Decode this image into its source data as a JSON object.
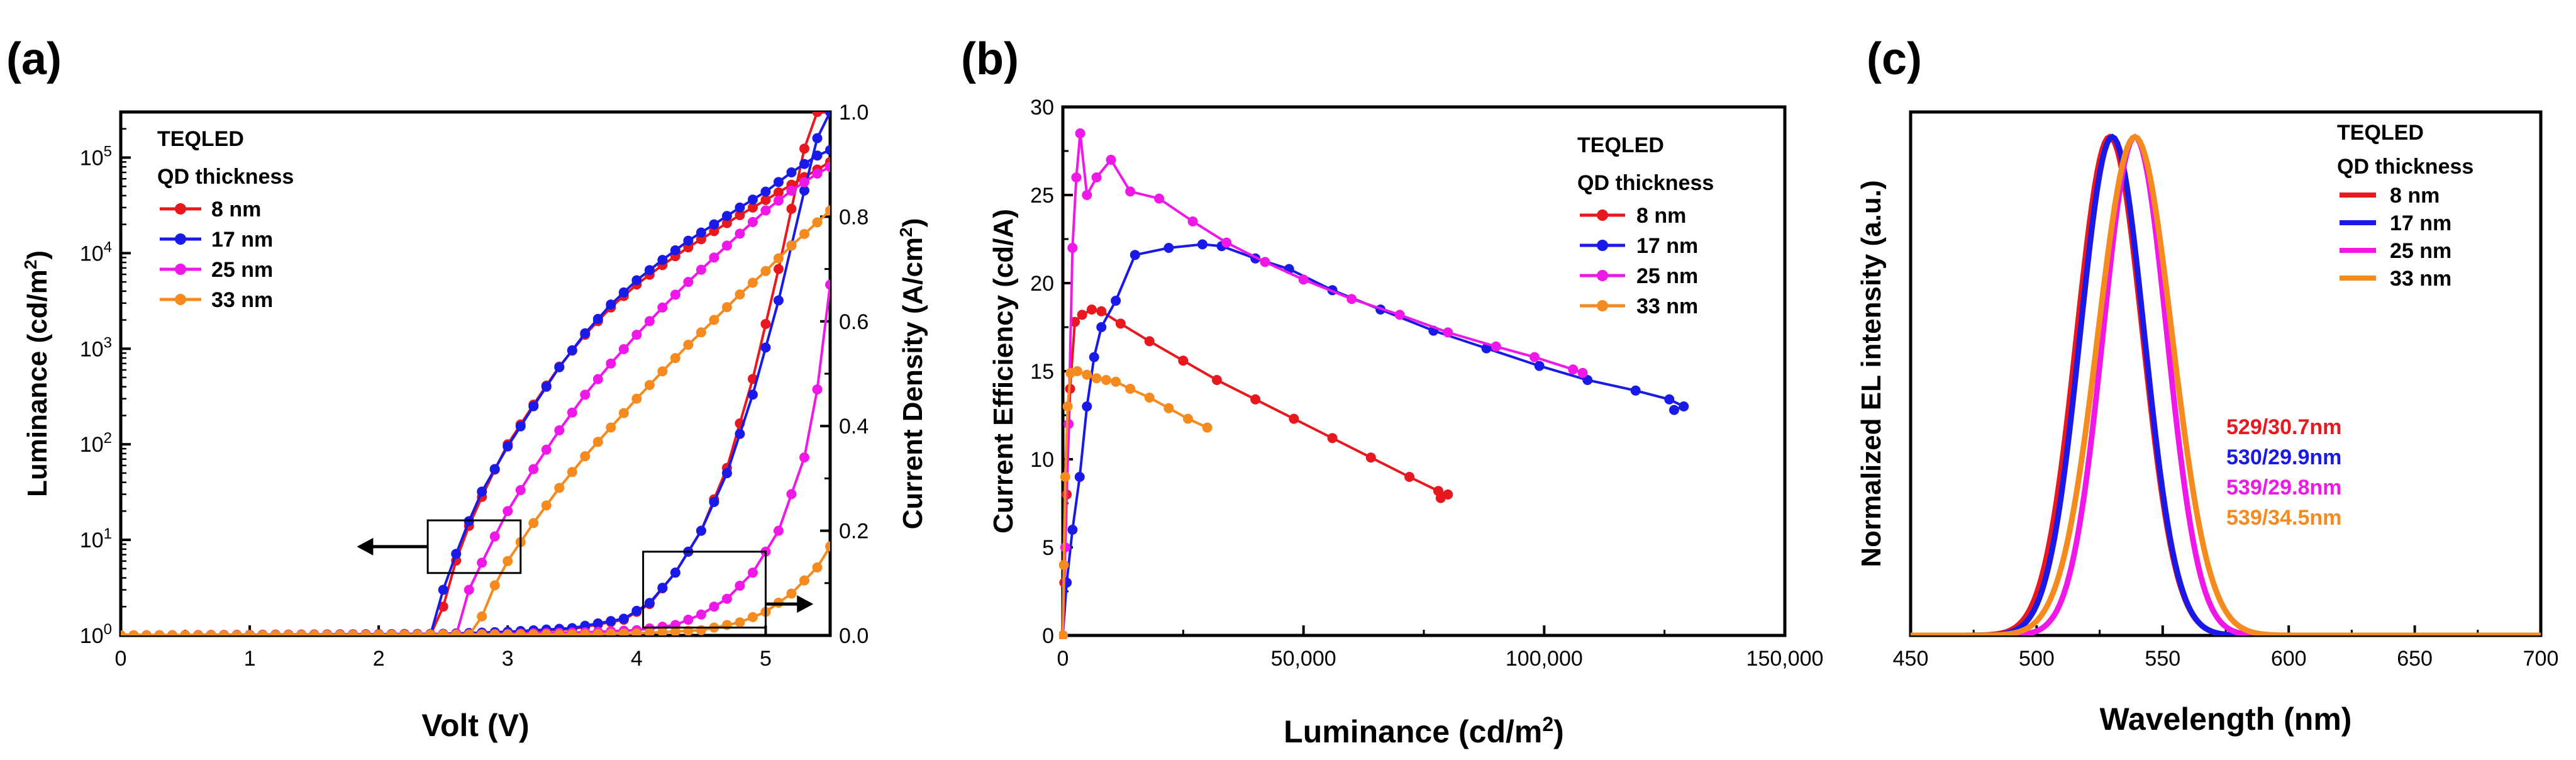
{
  "chart_data": [
    {
      "panel": "(a)",
      "type": "line",
      "xlabel": "Volt (V)",
      "ylabel_left": "Luminance (cd/m",
      "ylabel_left_sup": "2",
      "ylabel_left_tail": ")",
      "ylabel_right": "Current Density (A/cm",
      "ylabel_right_sup": "2",
      "ylabel_right_tail": ")",
      "xlim": [
        0,
        5.5
      ],
      "ylim_left_log": [
        1,
        300000
      ],
      "ylim_right": [
        0,
        1.0
      ],
      "xticks": [
        0,
        1,
        2,
        3,
        4,
        5
      ],
      "ylog_ticks": [
        {
          "value": 1,
          "base": "10",
          "exp": "0"
        },
        {
          "value": 10,
          "base": "10",
          "exp": "1"
        },
        {
          "value": 100,
          "base": "10",
          "exp": "2"
        },
        {
          "value": 1000,
          "base": "10",
          "exp": "3"
        },
        {
          "value": 10000,
          "base": "10",
          "exp": "4"
        },
        {
          "value": 100000,
          "base": "10",
          "exp": "5"
        }
      ],
      "yright_ticks": [
        "0.0",
        "0.2",
        "0.4",
        "0.6",
        "0.8",
        "1.0"
      ],
      "legend_title": [
        "TEQLED",
        "QD thickness"
      ],
      "legend_location": "top-left",
      "series": [
        {
          "name": "8 nm",
          "color": "#e8181e",
          "luminance": [
            [
              2.45,
              1
            ],
            [
              2.55,
              4
            ],
            [
              2.7,
              14
            ],
            [
              2.85,
              40
            ],
            [
              3.0,
              100
            ],
            [
              3.2,
              260
            ],
            [
              3.4,
              650
            ],
            [
              3.6,
              1400
            ],
            [
              3.8,
              2700
            ],
            [
              4.0,
              4700
            ],
            [
              4.2,
              7500
            ],
            [
              4.4,
              11500
            ],
            [
              4.6,
              17000
            ],
            [
              4.8,
              25000
            ],
            [
              5.0,
              36000
            ],
            [
              5.2,
              52000
            ],
            [
              5.4,
              75000
            ],
            [
              5.5,
              90000
            ]
          ],
          "current": [
            [
              0,
              0
            ],
            [
              2.5,
              0.003
            ],
            [
              3.0,
              0.006
            ],
            [
              3.5,
              0.012
            ],
            [
              3.9,
              0.03
            ],
            [
              4.1,
              0.06
            ],
            [
              4.3,
              0.12
            ],
            [
              4.5,
              0.2
            ],
            [
              4.7,
              0.32
            ],
            [
              4.9,
              0.49
            ],
            [
              5.1,
              0.7
            ],
            [
              5.3,
              0.93
            ],
            [
              5.35,
              1.0
            ]
          ]
        },
        {
          "name": "17 nm",
          "color": "#1a1ae8",
          "luminance": [
            [
              2.42,
              1
            ],
            [
              2.5,
              3
            ],
            [
              2.65,
              11
            ],
            [
              2.8,
              32
            ],
            [
              3.0,
              95
            ],
            [
              3.2,
              250
            ],
            [
              3.4,
              640
            ],
            [
              3.6,
              1450
            ],
            [
              3.8,
              2900
            ],
            [
              4.0,
              5200
            ],
            [
              4.2,
              8500
            ],
            [
              4.4,
              13500
            ],
            [
              4.6,
              20000
            ],
            [
              4.8,
              30000
            ],
            [
              5.0,
              44000
            ],
            [
              5.2,
              70000
            ],
            [
              5.4,
              105000
            ],
            [
              5.5,
              120000
            ]
          ],
          "current": [
            [
              0,
              0
            ],
            [
              2.5,
              0.003
            ],
            [
              3.0,
              0.007
            ],
            [
              3.5,
              0.014
            ],
            [
              3.9,
              0.032
            ],
            [
              4.1,
              0.062
            ],
            [
              4.3,
              0.12
            ],
            [
              4.5,
              0.2
            ],
            [
              4.7,
              0.31
            ],
            [
              4.9,
              0.46
            ],
            [
              5.1,
              0.64
            ],
            [
              5.3,
              0.85
            ],
            [
              5.45,
              1.0
            ]
          ]
        },
        {
          "name": "25 nm",
          "color": "#f018e8",
          "luminance": [
            [
              2.6,
              1
            ],
            [
              2.7,
              3
            ],
            [
              2.85,
              8
            ],
            [
              3.0,
              20
            ],
            [
              3.2,
              55
            ],
            [
              3.4,
              140
            ],
            [
              3.6,
              330
            ],
            [
              3.8,
              700
            ],
            [
              4.0,
              1400
            ],
            [
              4.2,
              2700
            ],
            [
              4.4,
              5000
            ],
            [
              4.6,
              9000
            ],
            [
              4.8,
              16000
            ],
            [
              5.0,
              28000
            ],
            [
              5.2,
              45000
            ],
            [
              5.4,
              68000
            ],
            [
              5.5,
              80000
            ]
          ],
          "current": [
            [
              0,
              0
            ],
            [
              3.0,
              0.003
            ],
            [
              3.6,
              0.006
            ],
            [
              4.0,
              0.01
            ],
            [
              4.3,
              0.02
            ],
            [
              4.5,
              0.04
            ],
            [
              4.7,
              0.07
            ],
            [
              4.9,
              0.12
            ],
            [
              5.1,
              0.2
            ],
            [
              5.3,
              0.34
            ],
            [
              5.4,
              0.47
            ],
            [
              5.5,
              0.67
            ]
          ]
        },
        {
          "name": "33 nm",
          "color": "#f58a1f",
          "luminance": [
            [
              2.75,
              1
            ],
            [
              2.85,
              2.5
            ],
            [
              3.0,
              6
            ],
            [
              3.2,
              15
            ],
            [
              3.4,
              35
            ],
            [
              3.6,
              75
            ],
            [
              3.8,
              150
            ],
            [
              4.0,
              300
            ],
            [
              4.2,
              580
            ],
            [
              4.4,
              1100
            ],
            [
              4.6,
              2000
            ],
            [
              4.8,
              3700
            ],
            [
              5.0,
              6500
            ],
            [
              5.2,
              12000
            ],
            [
              5.4,
              21000
            ],
            [
              5.5,
              28000
            ]
          ],
          "current": [
            [
              0,
              0
            ],
            [
              3.5,
              0.002
            ],
            [
              4.0,
              0.004
            ],
            [
              4.5,
              0.01
            ],
            [
              4.8,
              0.025
            ],
            [
              5.0,
              0.045
            ],
            [
              5.2,
              0.08
            ],
            [
              5.4,
              0.13
            ],
            [
              5.5,
              0.17
            ]
          ]
        }
      ]
    },
    {
      "panel": "(b)",
      "type": "line",
      "xlabel": "Luminance (cd/m",
      "xlabel_sup": "2",
      "xlabel_tail": ")",
      "ylabel": "Current Efficiency (cd/A)",
      "xlim": [
        0,
        150000
      ],
      "ylim": [
        0,
        30
      ],
      "xticks": [
        0,
        50000,
        100000,
        150000
      ],
      "xtick_labels": [
        "0",
        "50,000",
        "100,000",
        "150,000"
      ],
      "yticks": [
        0,
        5,
        10,
        15,
        20,
        25,
        30
      ],
      "legend_title": [
        "TEQLED",
        "QD thickness"
      ],
      "legend_location": "top-right",
      "series": [
        {
          "name": "8 nm",
          "color": "#e8181e",
          "points": [
            [
              0,
              0
            ],
            [
              300,
              3
            ],
            [
              800,
              8
            ],
            [
              1500,
              14
            ],
            [
              2500,
              17.8
            ],
            [
              4000,
              18.2
            ],
            [
              6000,
              18.5
            ],
            [
              8000,
              18.4
            ],
            [
              12000,
              17.7
            ],
            [
              18000,
              16.7
            ],
            [
              25000,
              15.6
            ],
            [
              32000,
              14.5
            ],
            [
              40000,
              13.4
            ],
            [
              48000,
              12.3
            ],
            [
              56000,
              11.2
            ],
            [
              64000,
              10.1
            ],
            [
              72000,
              9.0
            ],
            [
              78000,
              8.2
            ],
            [
              80000,
              8.0
            ],
            [
              78500,
              7.8
            ]
          ]
        },
        {
          "name": "17 nm",
          "color": "#1a1ae8",
          "points": [
            [
              0,
              0
            ],
            [
              800,
              3
            ],
            [
              2000,
              6
            ],
            [
              3500,
              9
            ],
            [
              5000,
              13
            ],
            [
              6500,
              15.8
            ],
            [
              8000,
              17.5
            ],
            [
              11000,
              19
            ],
            [
              15000,
              21.6
            ],
            [
              22000,
              22
            ],
            [
              29000,
              22.2
            ],
            [
              33000,
              22.1
            ],
            [
              40000,
              21.4
            ],
            [
              47000,
              20.8
            ],
            [
              56000,
              19.6
            ],
            [
              66000,
              18.5
            ],
            [
              77000,
              17.3
            ],
            [
              88000,
              16.3
            ],
            [
              99000,
              15.3
            ],
            [
              109000,
              14.5
            ],
            [
              119000,
              13.9
            ],
            [
              126000,
              13.4
            ],
            [
              129000,
              13.0
            ],
            [
              127000,
              12.8
            ]
          ]
        },
        {
          "name": "25 nm",
          "color": "#f018e8",
          "points": [
            [
              0,
              0
            ],
            [
              500,
              5
            ],
            [
              1200,
              12
            ],
            [
              2000,
              22
            ],
            [
              2800,
              26
            ],
            [
              3600,
              28.5
            ],
            [
              5000,
              25
            ],
            [
              7000,
              26
            ],
            [
              10000,
              27
            ],
            [
              14000,
              25.2
            ],
            [
              20000,
              24.8
            ],
            [
              27000,
              23.5
            ],
            [
              34000,
              22.3
            ],
            [
              42000,
              21.2
            ],
            [
              50000,
              20.2
            ],
            [
              60000,
              19.1
            ],
            [
              70000,
              18.2
            ],
            [
              80000,
              17.2
            ],
            [
              90000,
              16.4
            ],
            [
              98000,
              15.8
            ],
            [
              106000,
              15.1
            ],
            [
              108000,
              14.9
            ]
          ]
        },
        {
          "name": "33 nm",
          "color": "#f58a1f",
          "points": [
            [
              0,
              0
            ],
            [
              200,
              4
            ],
            [
              500,
              9
            ],
            [
              1000,
              13
            ],
            [
              1600,
              14.9
            ],
            [
              3000,
              15
            ],
            [
              5000,
              14.8
            ],
            [
              7000,
              14.6
            ],
            [
              9000,
              14.5
            ],
            [
              11000,
              14.4
            ],
            [
              14000,
              14.0
            ],
            [
              18000,
              13.5
            ],
            [
              22000,
              12.9
            ],
            [
              26000,
              12.3
            ],
            [
              30000,
              11.8
            ]
          ]
        }
      ]
    },
    {
      "panel": "(c)",
      "type": "line",
      "xlabel": "Wavelength (nm)",
      "ylabel": "Normalized EL intensity (a.u.)",
      "xlim": [
        450,
        700
      ],
      "ylim": [
        0,
        1.05
      ],
      "xticks": [
        450,
        500,
        550,
        600,
        650,
        700
      ],
      "legend_title": [
        "TEQLED",
        "QD thickness"
      ],
      "legend_location": "top-right",
      "series": [
        {
          "name": "8 nm",
          "color": "#e8181e",
          "peak": 529,
          "fwhm": 30.7
        },
        {
          "name": "17 nm",
          "color": "#1a1ae8",
          "peak": 530,
          "fwhm": 29.9
        },
        {
          "name": "25 nm",
          "color": "#f018e8",
          "peak": 539,
          "fwhm": 29.8
        },
        {
          "name": "33 nm",
          "color": "#f58a1f",
          "peak": 539,
          "fwhm": 34.5
        }
      ],
      "annotations": [
        {
          "text": "529/30.7nm",
          "color": "#e8181e"
        },
        {
          "text": "530/29.9nm",
          "color": "#1a1ae8"
        },
        {
          "text": "539/29.8nm",
          "color": "#f018e8"
        },
        {
          "text": "539/34.5nm",
          "color": "#f58a1f"
        }
      ]
    }
  ]
}
